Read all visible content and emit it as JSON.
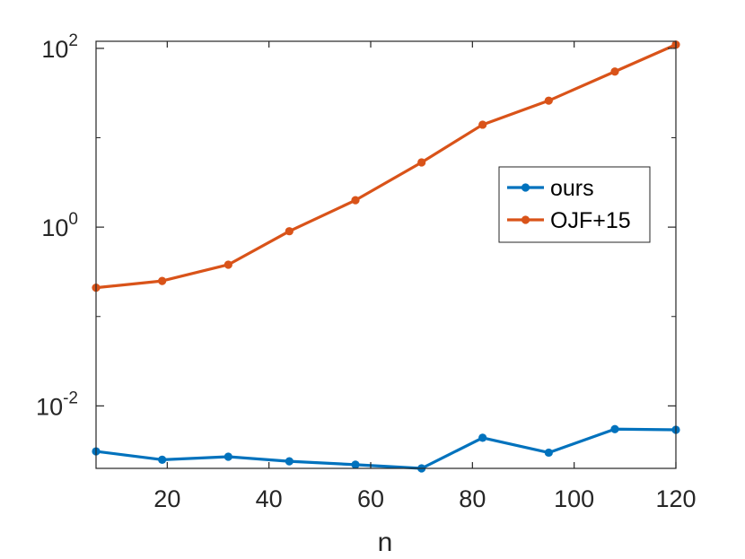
{
  "chart_data": {
    "type": "line",
    "xlabel": "n",
    "ylabel": "",
    "title": "",
    "yscale": "log",
    "xlim": [
      6,
      120
    ],
    "ylim": [
      0.002,
      120
    ],
    "grid": false,
    "legend_position": "right",
    "x_ticks": [
      20,
      40,
      60,
      80,
      100,
      120
    ],
    "x_tick_labels": [
      "20",
      "40",
      "60",
      "80",
      "100",
      "120"
    ],
    "y_ticks": [
      {
        "value": 0.01,
        "base": "10",
        "exp": "-2"
      },
      {
        "value": 1,
        "base": "10",
        "exp": "0"
      },
      {
        "value": 100,
        "base": "10",
        "exp": "2"
      }
    ],
    "x": [
      6,
      19,
      32,
      44,
      57,
      70,
      82,
      95,
      108,
      120
    ],
    "series": [
      {
        "name": "ours",
        "color": "#0072BD",
        "values": [
          0.0031,
          0.0025,
          0.0027,
          0.0024,
          0.0022,
          0.002,
          0.0044,
          0.003,
          0.0055,
          0.0054
        ]
      },
      {
        "name": "OJF+15",
        "color": "#D95319",
        "values": [
          0.21,
          0.25,
          0.38,
          0.9,
          2.0,
          5.3,
          14.0,
          26.0,
          55.0,
          110.0
        ]
      }
    ]
  }
}
